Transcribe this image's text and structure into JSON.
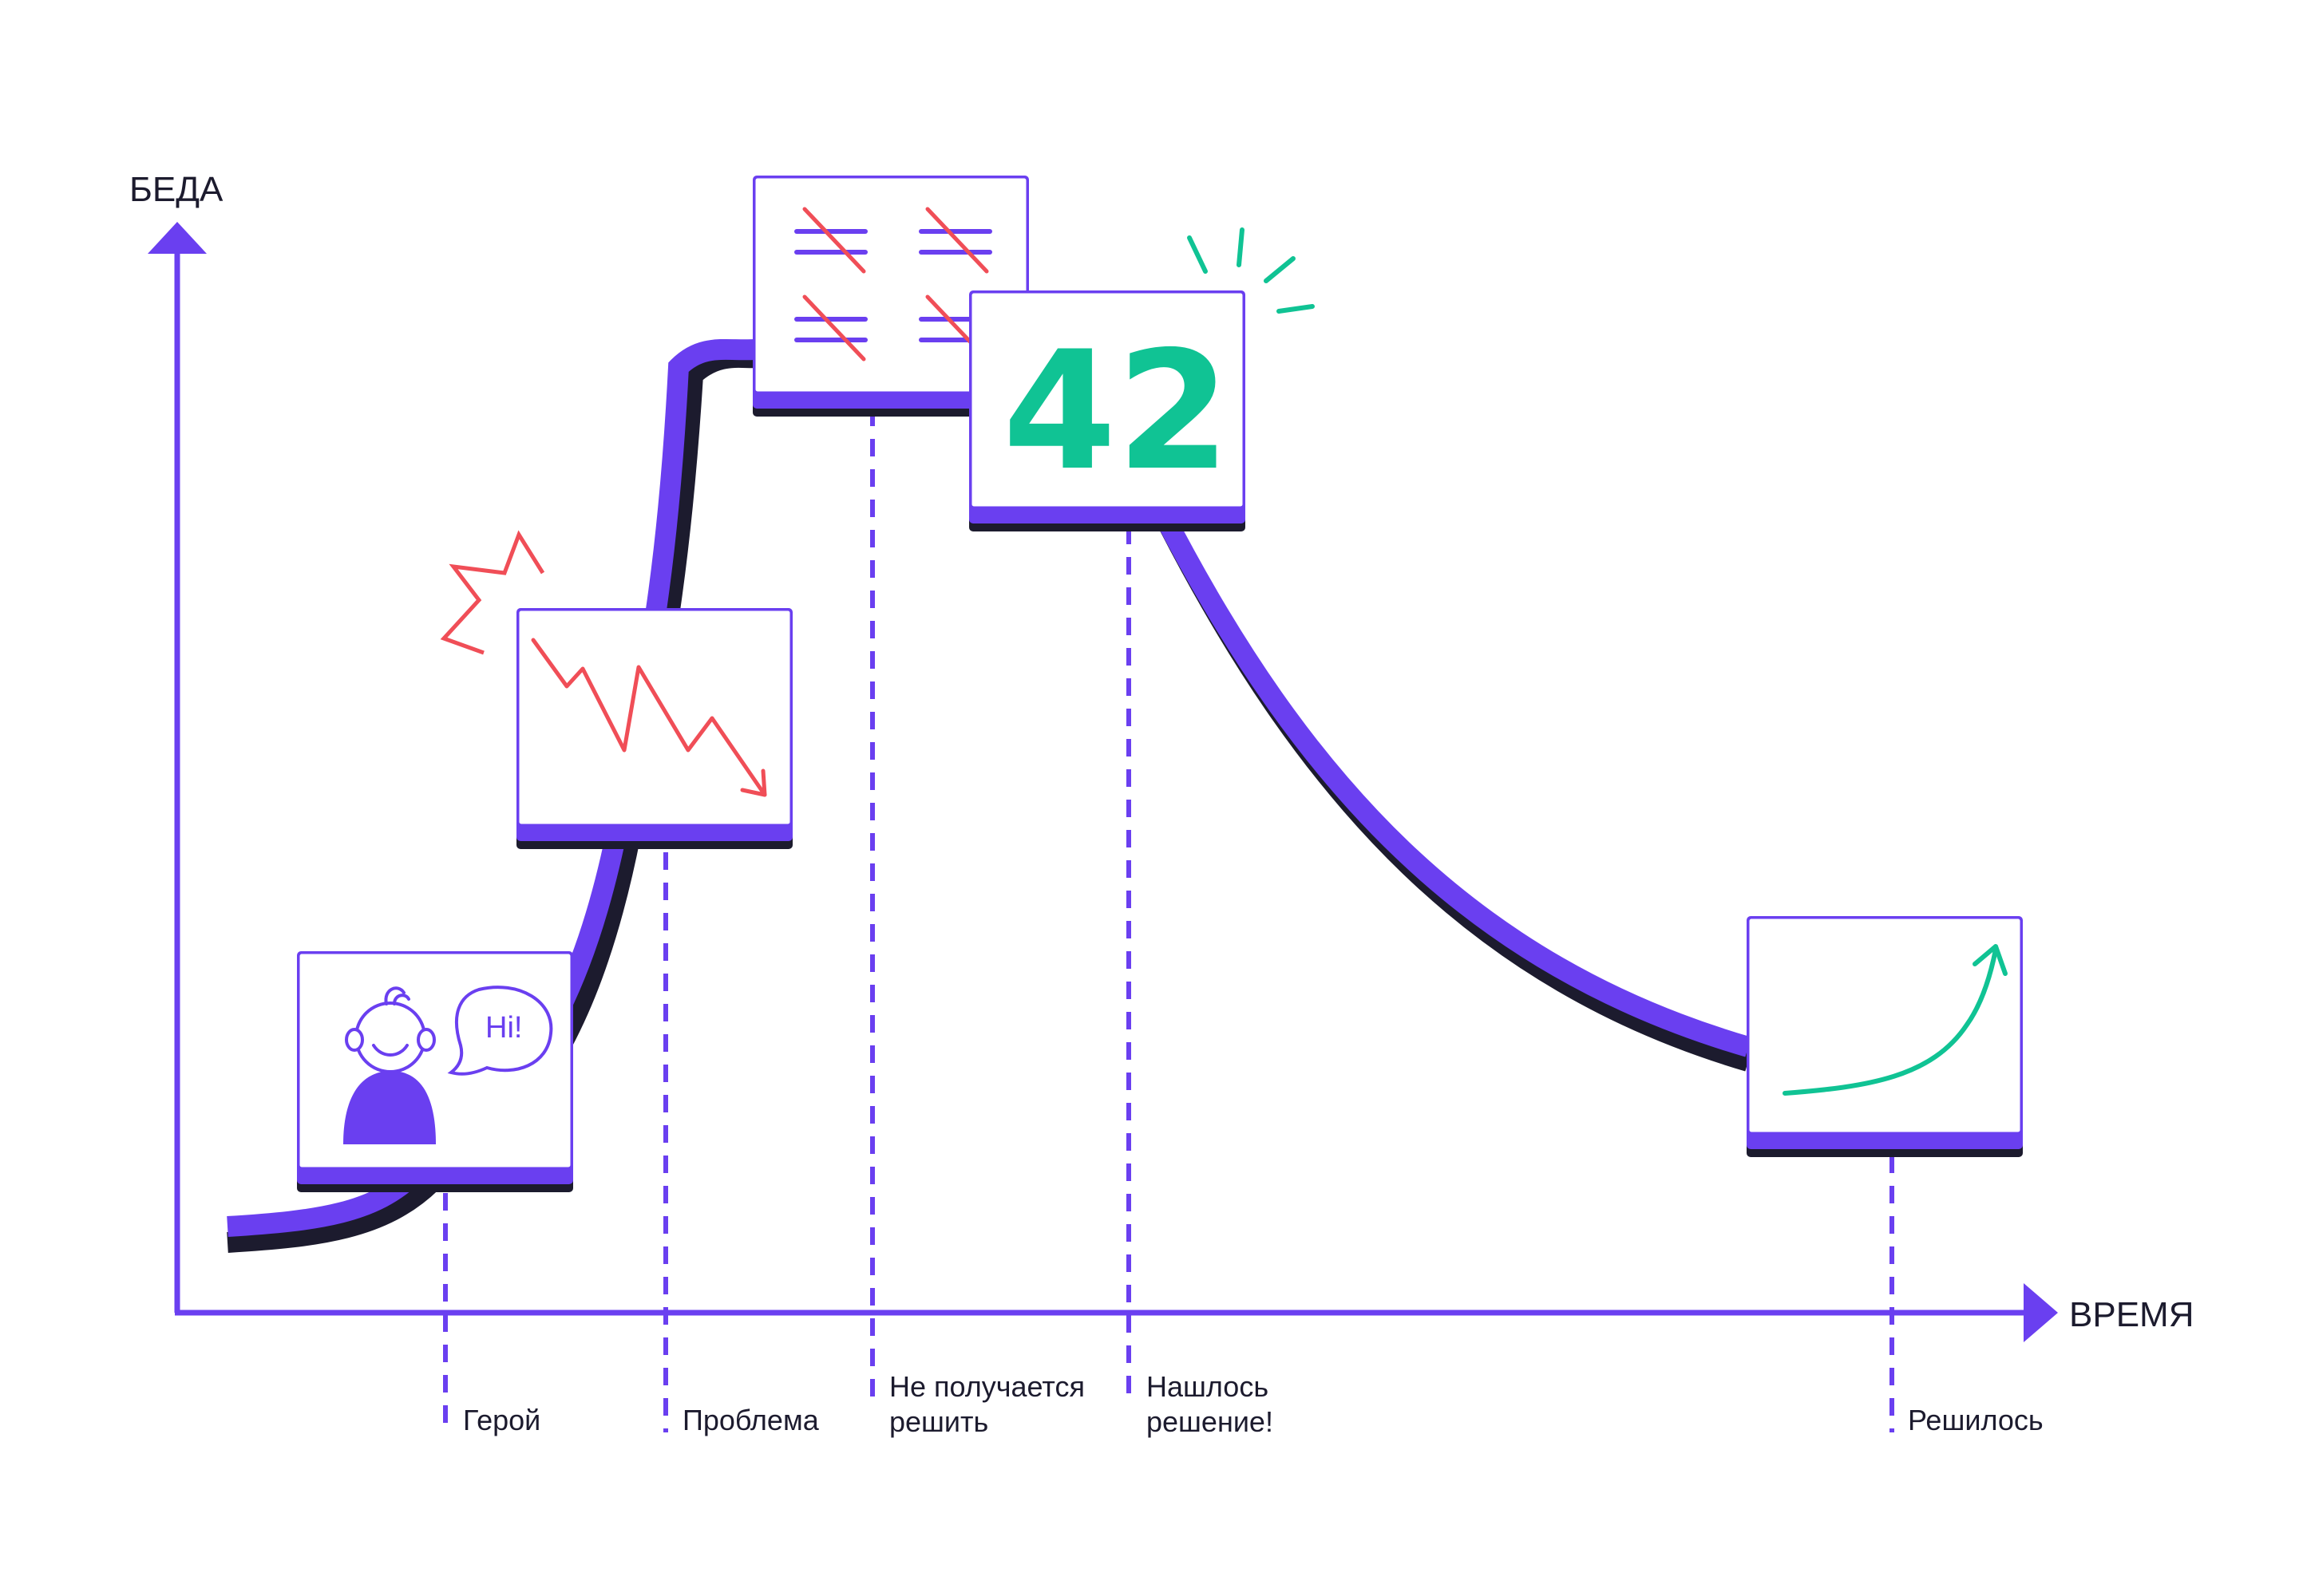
{
  "axes": {
    "y_label": "БЕДА",
    "x_label": "ВРЕМЯ"
  },
  "stages": [
    {
      "lines": [
        "Герой"
      ]
    },
    {
      "lines": [
        "Проблема"
      ]
    },
    {
      "lines": [
        "Не получается",
        "решить"
      ]
    },
    {
      "lines": [
        "Нашлось",
        "решение!"
      ]
    },
    {
      "lines": [
        "Решилось"
      ]
    }
  ],
  "cards": {
    "hero_speech": "Hi!",
    "answer_number": "42"
  },
  "colors": {
    "accent": "#6a3ff0",
    "shadow": "#1c1b2e",
    "problem": "#f04e57",
    "solution": "#10c394"
  },
  "icons": [
    "person-icon",
    "speech-bubble-icon",
    "falling-chart-icon",
    "crossed-equals-icon",
    "sparkle-icon",
    "rising-arrow-icon"
  ]
}
